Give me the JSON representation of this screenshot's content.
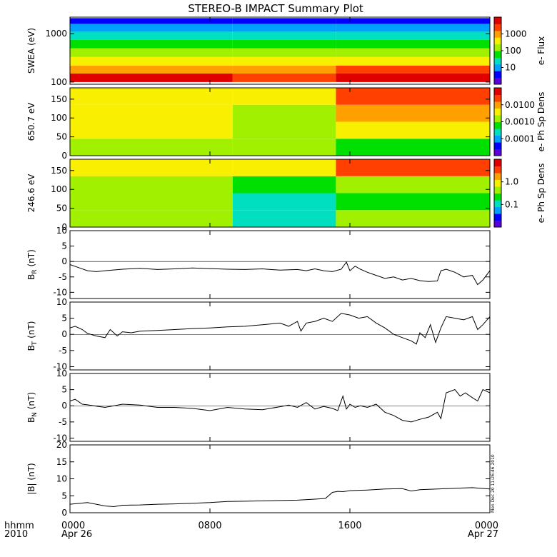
{
  "title": "STEREO-B IMPACT Summary Plot",
  "x_axis": {
    "unit_label": "hhmm",
    "year_label": "2010",
    "ticks": [
      {
        "main": "0000",
        "sub": "Apr 26"
      },
      {
        "main": "0800",
        "sub": ""
      },
      {
        "main": "1600",
        "sub": ""
      },
      {
        "main": "0000",
        "sub": "Apr 27"
      }
    ]
  },
  "timestamp": "Mon Dec 20 11:26:46 2010",
  "colors": {
    "spectrogram_scale": [
      "#5a00d8",
      "#0000ff",
      "#00a0ff",
      "#00e0c0",
      "#00e000",
      "#a0f000",
      "#f8f000",
      "#ffa000",
      "#ff4000",
      "#e00000"
    ],
    "line": "#000000",
    "axis": "#000000"
  },
  "chart_data": [
    {
      "type": "heatmap",
      "name": "swea",
      "ylabel": "SWEA (eV)",
      "yscale": "log",
      "ylim": [
        90,
        2200
      ],
      "yticks": [
        "100",
        "1000"
      ],
      "colorbar": {
        "label": "e- Flux",
        "scale": "log",
        "ticks": [
          "10",
          "100",
          "1000"
        ]
      },
      "time_segments_hours": [
        0,
        9.3,
        15.2,
        24
      ],
      "energy_levels_eV": [
        100,
        150,
        220,
        330,
        500,
        750,
        1100,
        1600,
        2100
      ],
      "levels": [
        [
          9,
          7.4,
          6.0,
          4.9,
          4.1,
          3.2,
          1.8,
          0.6
        ],
        [
          8.4,
          6.9,
          5.7,
          4.6,
          3.8,
          2.9,
          1.6,
          0.5
        ],
        [
          9,
          7.6,
          6.2,
          5.0,
          4.2,
          3.3,
          2.0,
          0.7
        ]
      ]
    },
    {
      "type": "heatmap",
      "name": "pad650",
      "ylabel": "650.7 eV",
      "ylim": [
        0,
        180
      ],
      "yticks": [
        "0",
        "50",
        "100",
        "150"
      ],
      "colorbar": {
        "label": "e- Ph Sp Dens",
        "scale": "log",
        "ticks": [
          "0.0001",
          "0.0010",
          "0.0100"
        ]
      },
      "time_segments_hours": [
        0,
        9.3,
        15.2,
        24
      ],
      "pitch_bands_deg": [
        0,
        45,
        90,
        135,
        180
      ],
      "levels": [
        [
          4.8,
          5.5,
          5.9,
          6.4
        ],
        [
          4.6,
          4.9,
          5.3,
          6.0
        ],
        [
          4.2,
          5.5,
          7.2,
          8.2
        ]
      ]
    },
    {
      "type": "heatmap",
      "name": "pad246",
      "ylabel": "246.6 eV",
      "ylim": [
        0,
        180
      ],
      "yticks": [
        "0",
        "50",
        "100",
        "150"
      ],
      "colorbar": {
        "label": "e- Ph Sp Dens",
        "scale": "log",
        "ticks": [
          "0.1",
          "1.0"
        ]
      },
      "time_segments_hours": [
        0,
        9.3,
        15.2,
        24
      ],
      "pitch_bands_deg": [
        0,
        45,
        90,
        135,
        180
      ],
      "levels": [
        [
          4.6,
          4.8,
          5.0,
          5.5
        ],
        [
          3.4,
          3.4,
          3.6,
          5.6
        ],
        [
          4.6,
          4.4,
          5.0,
          8.3
        ]
      ]
    },
    {
      "type": "line",
      "name": "br",
      "ylabel_main": "B",
      "ylabel_sub": "R",
      "ylabel_unit": " (nT)",
      "ylim": [
        -12,
        10
      ],
      "yticks": [
        "-10",
        "-5",
        "0",
        "5",
        "10"
      ],
      "x_hours": [
        0,
        0.5,
        1,
        1.5,
        2,
        3,
        4,
        5,
        6,
        7,
        8,
        9,
        10,
        11,
        12,
        13,
        13.5,
        14,
        14.5,
        15,
        15.5,
        15.8,
        16,
        16.3,
        16.6,
        17,
        17.5,
        18,
        18.5,
        19,
        19.5,
        20,
        20.5,
        21,
        21.2,
        21.5,
        22,
        22.5,
        23,
        23.3,
        23.6,
        24
      ],
      "y_nT": [
        -1,
        -2,
        -3,
        -3.3,
        -3,
        -2.5,
        -2.2,
        -2.6,
        -2.4,
        -2.1,
        -2.3,
        -2.5,
        -2.6,
        -2.4,
        -2.8,
        -2.6,
        -3,
        -2.4,
        -3,
        -3.3,
        -2.5,
        -0.2,
        -3,
        -1.5,
        -2.5,
        -3.5,
        -4.5,
        -5.5,
        -5,
        -6,
        -5.5,
        -6.2,
        -6.5,
        -6.3,
        -3,
        -2.5,
        -3.5,
        -5,
        -4.5,
        -7.5,
        -6,
        -3
      ]
    },
    {
      "type": "line",
      "name": "bt",
      "ylabel_main": "B",
      "ylabel_sub": "T",
      "ylabel_unit": " (nT)",
      "ylim": [
        -11,
        10
      ],
      "yticks": [
        "-10",
        "-5",
        "0",
        "5",
        "10"
      ],
      "x_hours": [
        0,
        0.3,
        0.7,
        1,
        1.5,
        2,
        2.3,
        2.7,
        3,
        3.5,
        4,
        5,
        6,
        7,
        8,
        9,
        10,
        11,
        12,
        12.5,
        13,
        13.2,
        13.5,
        14,
        14.5,
        15,
        15.5,
        16,
        16.5,
        17,
        17.5,
        18,
        18.5,
        19,
        19.5,
        19.8,
        20,
        20.3,
        20.6,
        20.9,
        21.2,
        21.5,
        22,
        22.5,
        23,
        23.3,
        23.6,
        24
      ],
      "y_nT": [
        2,
        2.5,
        1.5,
        0.3,
        -0.5,
        -1,
        1.5,
        -0.5,
        0.8,
        0.5,
        1,
        1.2,
        1.5,
        1.8,
        2,
        2.3,
        2.5,
        3,
        3.5,
        2.5,
        4,
        1,
        3.5,
        4,
        5,
        4,
        6.5,
        6,
        5,
        5.5,
        3.5,
        2,
        0,
        -1,
        -2,
        -3,
        0.5,
        -1,
        3,
        -2.5,
        2,
        5.5,
        5,
        4.5,
        5.5,
        1.5,
        3,
        5.5
      ]
    },
    {
      "type": "line",
      "name": "bn",
      "ylabel_main": "B",
      "ylabel_sub": "N",
      "ylabel_unit": " (nT)",
      "ylim": [
        -11,
        10
      ],
      "yticks": [
        "-10",
        "-5",
        "0",
        "5",
        "10"
      ],
      "x_hours": [
        0,
        0.3,
        0.7,
        1,
        2,
        3,
        4,
        5,
        6,
        7,
        8,
        9,
        10,
        11,
        12,
        12.5,
        13,
        13.5,
        14,
        14.5,
        15,
        15.3,
        15.6,
        15.8,
        16,
        16.3,
        16.6,
        17,
        17.5,
        18,
        18.5,
        19,
        19.5,
        20,
        20.5,
        21,
        21.2,
        21.5,
        22,
        22.3,
        22.6,
        23,
        23.3,
        23.6,
        24
      ],
      "y_nT": [
        1.5,
        2,
        0.5,
        0.3,
        -0.5,
        0.5,
        0.2,
        -0.5,
        -0.5,
        -0.8,
        -1.5,
        -0.5,
        -1,
        -1.2,
        -0.3,
        0.2,
        -0.5,
        1,
        -1,
        -0.2,
        -0.8,
        -1.5,
        3,
        -1,
        0.5,
        -0.5,
        0,
        -0.5,
        0.5,
        -2,
        -3,
        -4.5,
        -5,
        -4.2,
        -3.5,
        -2,
        -4,
        4,
        5,
        3,
        4,
        2.5,
        1.5,
        5,
        4
      ]
    },
    {
      "type": "line",
      "name": "bmag",
      "ylabel_main": "|B| (nT)",
      "ylim": [
        0,
        20
      ],
      "yticks": [
        "0",
        "5",
        "10",
        "15",
        "20"
      ],
      "x_hours": [
        0,
        1,
        2,
        2.5,
        3,
        4,
        5,
        6,
        7,
        8,
        9,
        10,
        11,
        12,
        13,
        14,
        14.6,
        15,
        15.3,
        15.6,
        16,
        17,
        18,
        19,
        19.5,
        20,
        21,
        22,
        23,
        24
      ],
      "y_nT": [
        2.5,
        3,
        2,
        1.8,
        2.2,
        2.3,
        2.5,
        2.6,
        2.8,
        3,
        3.3,
        3.4,
        3.5,
        3.6,
        3.7,
        4,
        4.2,
        6,
        6.3,
        6.2,
        6.5,
        6.7,
        7,
        7.1,
        6.4,
        6.8,
        7,
        7.2,
        7.4,
        7
      ]
    }
  ]
}
